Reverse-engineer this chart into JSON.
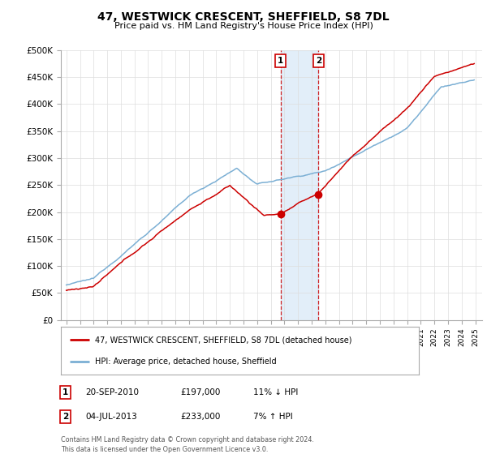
{
  "title": "47, WESTWICK CRESCENT, SHEFFIELD, S8 7DL",
  "subtitle": "Price paid vs. HM Land Registry's House Price Index (HPI)",
  "ylabel_ticks": [
    "£0",
    "£50K",
    "£100K",
    "£150K",
    "£200K",
    "£250K",
    "£300K",
    "£350K",
    "£400K",
    "£450K",
    "£500K"
  ],
  "ytick_vals": [
    0,
    50000,
    100000,
    150000,
    200000,
    250000,
    300000,
    350000,
    400000,
    450000,
    500000
  ],
  "ylim": [
    0,
    500000
  ],
  "hpi_color": "#7bafd4",
  "price_color": "#cc0000",
  "sale1_date_label": "20-SEP-2010",
  "sale1_price": 197000,
  "sale1_hpi_diff": "11% ↓ HPI",
  "sale1_year": 2010.72,
  "sale2_date_label": "04-JUL-2013",
  "sale2_price": 233000,
  "sale2_hpi_diff": "7% ↑ HPI",
  "sale2_year": 2013.5,
  "legend_label1": "47, WESTWICK CRESCENT, SHEFFIELD, S8 7DL (detached house)",
  "legend_label2": "HPI: Average price, detached house, Sheffield",
  "footnote": "Contains HM Land Registry data © Crown copyright and database right 2024.\nThis data is licensed under the Open Government Licence v3.0.",
  "shade_color": "#d6e8f7",
  "shade_alpha": 0.7,
  "xtick_start": 1995,
  "xtick_end": 2025
}
